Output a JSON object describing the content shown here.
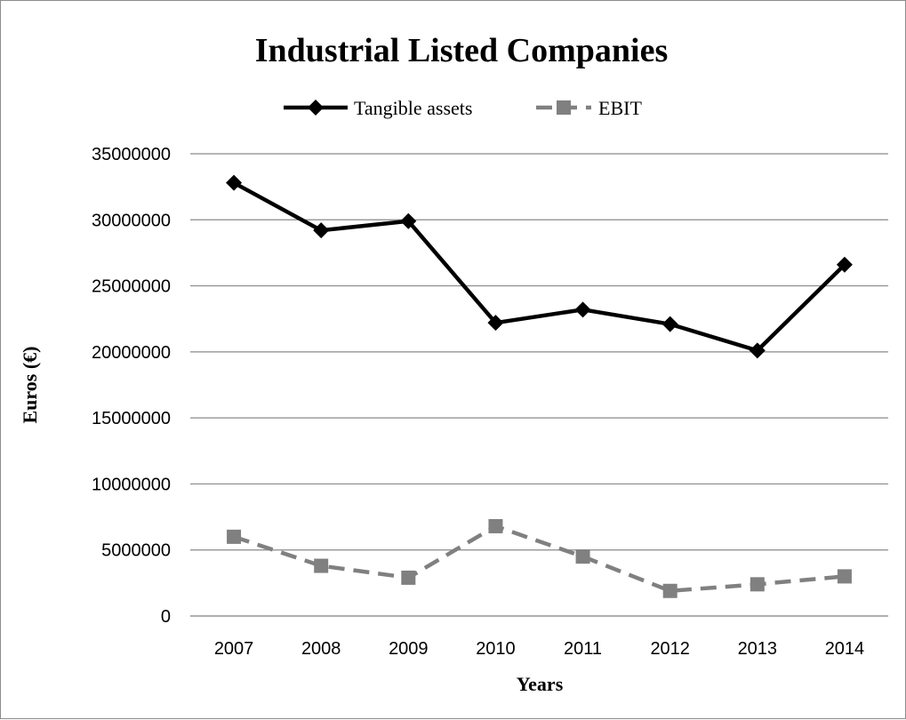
{
  "chart_data": {
    "type": "line",
    "title": "Industrial Listed Companies",
    "xlabel": "Years",
    "ylabel": "Euros (€)",
    "categories": [
      "2007",
      "2008",
      "2009",
      "2010",
      "2011",
      "2012",
      "2013",
      "2014"
    ],
    "ylim": [
      0,
      35000000
    ],
    "yticks": [
      "0",
      "5000000",
      "10000000",
      "15000000",
      "20000000",
      "25000000",
      "30000000",
      "35000000"
    ],
    "ytick_values": [
      0,
      5000000,
      10000000,
      15000000,
      20000000,
      25000000,
      30000000,
      35000000
    ],
    "grid": "horizontal",
    "legend_position": "top",
    "series": [
      {
        "name": "Tangible assets",
        "values": [
          32800000,
          29200000,
          29900000,
          22200000,
          23200000,
          22100000,
          20100000,
          26600000
        ],
        "color": "#000000",
        "line_style": "solid",
        "marker": "diamond"
      },
      {
        "name": "EBIT",
        "values": [
          6000000,
          3800000,
          2900000,
          6800000,
          4500000,
          1900000,
          2400000,
          3000000
        ],
        "color": "#808080",
        "line_style": "dashed",
        "marker": "square"
      }
    ]
  }
}
